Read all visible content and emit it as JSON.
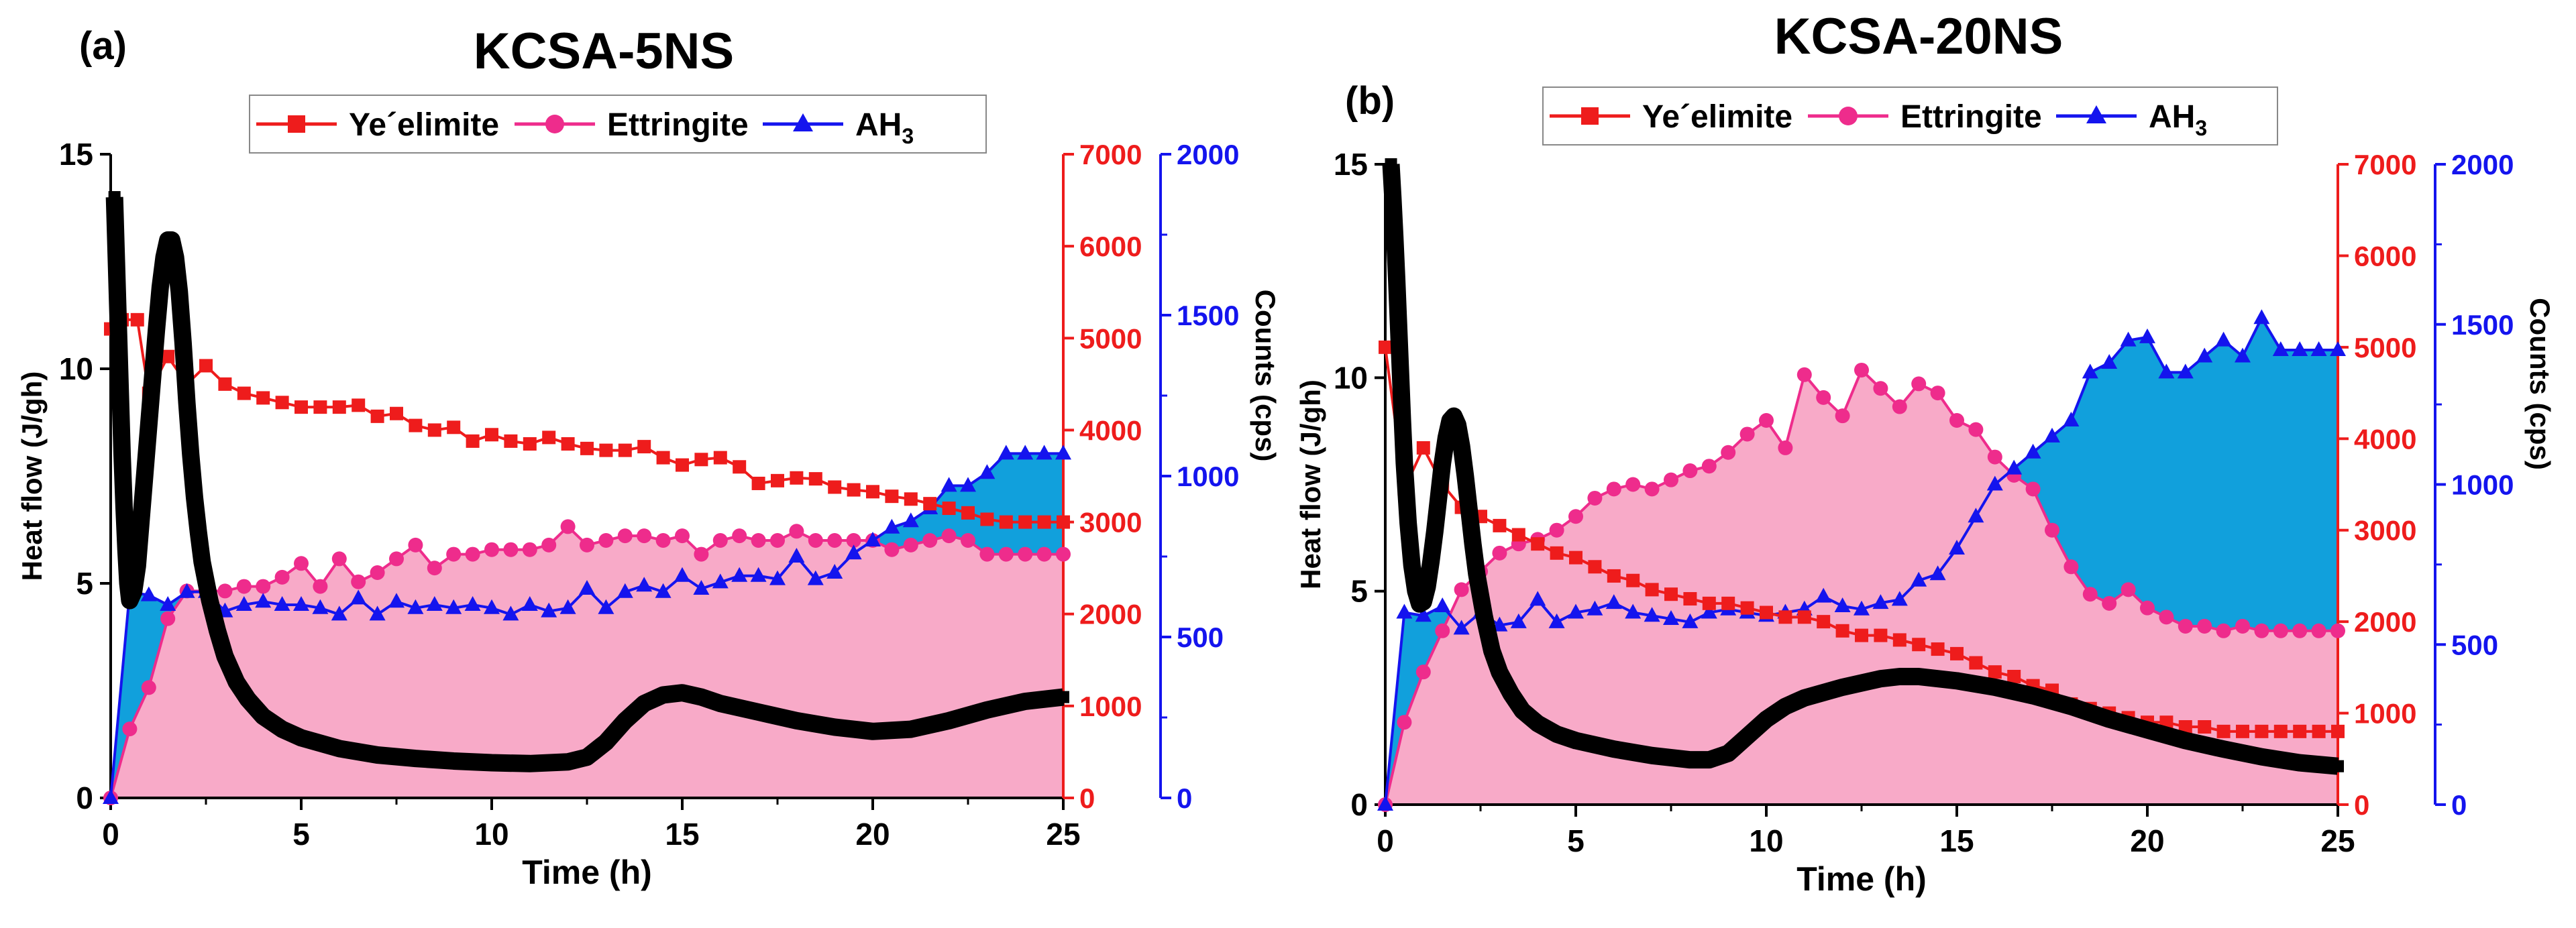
{
  "colors": {
    "yeelimite": "#ee1c1c",
    "ettringite": "#ee2c8c",
    "ettringite_fill": "#f8aac8",
    "ah3": "#1414ee",
    "ah3_fill": "#11a0dc",
    "heat": "#000000",
    "left_axis": "#000000",
    "mid_axis": "#ee1c1c",
    "right_axis": "#1414ee"
  },
  "chart_data": [
    {
      "type": "line",
      "panel_label": "(a)",
      "title": "KCSA-5NS",
      "legend": [
        "Ye´elimite",
        "Ettringite",
        "AH3"
      ],
      "xlabel": "Time (h)",
      "ylabel_left": "Heat flow (J/gh)",
      "ylabel_right": "Counts (cps)",
      "xlim": [
        0,
        25
      ],
      "ylim_left": [
        0,
        15
      ],
      "ylim_mid": [
        0,
        7000
      ],
      "ylim_right": [
        0,
        2000
      ],
      "xticks": [
        0,
        5,
        10,
        15,
        20,
        25
      ],
      "yticks_left": [
        0,
        5,
        10,
        15
      ],
      "yticks_mid": [
        0,
        1000,
        2000,
        3000,
        4000,
        5000,
        6000,
        7000
      ],
      "yticks_right": [
        0,
        500,
        1000,
        1500,
        2000
      ],
      "series": [
        {
          "name": "Heat flow",
          "axis": "left",
          "x": [
            0.1,
            0.15,
            0.2,
            0.25,
            0.3,
            0.35,
            0.4,
            0.45,
            0.5,
            0.6,
            0.7,
            0.8,
            0.9,
            1.0,
            1.1,
            1.2,
            1.3,
            1.4,
            1.5,
            1.6,
            1.7,
            1.8,
            1.9,
            2.0,
            2.1,
            2.2,
            2.3,
            2.4,
            2.6,
            2.8,
            3.0,
            3.3,
            3.6,
            4.0,
            4.5,
            5,
            6,
            7,
            8,
            9,
            10,
            11,
            12,
            12.5,
            13,
            13.5,
            14,
            14.5,
            15,
            15.5,
            16,
            17,
            18,
            19,
            20,
            21,
            22,
            23,
            24,
            25
          ],
          "y": [
            14.0,
            12.5,
            11.0,
            9.5,
            8.0,
            6.8,
            5.8,
            5.0,
            4.6,
            4.8,
            5.4,
            6.5,
            7.6,
            8.7,
            9.8,
            10.9,
            11.9,
            12.6,
            13.0,
            13.0,
            12.6,
            11.8,
            10.6,
            9.2,
            8.0,
            7.0,
            6.2,
            5.5,
            4.6,
            3.9,
            3.3,
            2.7,
            2.3,
            1.9,
            1.6,
            1.4,
            1.15,
            1.0,
            0.92,
            0.86,
            0.82,
            0.8,
            0.84,
            0.95,
            1.3,
            1.8,
            2.2,
            2.4,
            2.45,
            2.35,
            2.2,
            2.0,
            1.8,
            1.65,
            1.55,
            1.6,
            1.8,
            2.05,
            2.25,
            2.35
          ]
        },
        {
          "name": "Ye´elimite",
          "axis": "mid",
          "x": [
            0,
            0.3,
            0.7,
            1.0,
            1.5,
            2.0,
            2.5,
            3.0,
            3.5,
            4.0,
            4.5,
            5.0,
            5.5,
            6.0,
            6.5,
            7.0,
            7.5,
            8.0,
            8.5,
            9.0,
            9.5,
            10.0,
            10.5,
            11.0,
            11.5,
            12.0,
            12.5,
            13.0,
            13.5,
            14.0,
            14.5,
            15.0,
            15.5,
            16.0,
            16.5,
            17.0,
            17.5,
            18.0,
            18.5,
            19.0,
            19.5,
            20.0,
            20.5,
            21.0,
            21.5,
            22.0,
            22.5,
            23.0,
            23.5,
            24.0,
            24.5,
            25.0
          ],
          "y": [
            5100,
            5200,
            5200,
            4400,
            4800,
            4500,
            4700,
            4500,
            4400,
            4350,
            4300,
            4250,
            4250,
            4250,
            4270,
            4150,
            4180,
            4050,
            4000,
            4030,
            3880,
            3950,
            3880,
            3850,
            3920,
            3850,
            3800,
            3780,
            3780,
            3820,
            3700,
            3620,
            3680,
            3700,
            3600,
            3420,
            3450,
            3480,
            3470,
            3380,
            3350,
            3330,
            3280,
            3250,
            3200,
            3150,
            3100,
            3030,
            3000,
            3000,
            3000,
            3000
          ]
        },
        {
          "name": "Ettringite",
          "axis": "mid",
          "x": [
            0,
            0.5,
            1.0,
            1.5,
            2.0,
            2.5,
            3.0,
            3.5,
            4.0,
            4.5,
            5.0,
            5.5,
            6.0,
            6.5,
            7.0,
            7.5,
            8.0,
            8.5,
            9.0,
            9.5,
            10.0,
            10.5,
            11.0,
            11.5,
            12.0,
            12.5,
            13.0,
            13.5,
            14.0,
            14.5,
            15.0,
            15.5,
            16.0,
            16.5,
            17.0,
            17.5,
            18.0,
            18.5,
            19.0,
            19.5,
            20.0,
            20.5,
            21.0,
            21.5,
            22.0,
            22.5,
            23.0,
            23.5,
            24.0,
            24.5,
            25.0
          ],
          "y": [
            0,
            750,
            1200,
            1950,
            2250,
            2250,
            2250,
            2300,
            2300,
            2400,
            2550,
            2300,
            2600,
            2350,
            2450,
            2600,
            2750,
            2500,
            2650,
            2650,
            2700,
            2700,
            2700,
            2750,
            2950,
            2750,
            2800,
            2850,
            2850,
            2800,
            2850,
            2650,
            2800,
            2850,
            2800,
            2800,
            2900,
            2800,
            2800,
            2800,
            2800,
            2700,
            2750,
            2800,
            2850,
            2800,
            2650,
            2650,
            2650,
            2650,
            2650
          ]
        },
        {
          "name": "AH3",
          "axis": "right",
          "x": [
            0,
            0.5,
            1.0,
            1.5,
            2.0,
            2.5,
            3.0,
            3.5,
            4.0,
            4.5,
            5.0,
            5.5,
            6.0,
            6.5,
            7.0,
            7.5,
            8.0,
            8.5,
            9.0,
            9.5,
            10.0,
            10.5,
            11.0,
            11.5,
            12.0,
            12.5,
            13.0,
            13.5,
            14.0,
            14.5,
            15.0,
            15.5,
            16.0,
            16.5,
            17.0,
            17.5,
            18.0,
            18.5,
            19.0,
            19.5,
            20.0,
            20.5,
            21.0,
            21.5,
            22.0,
            22.5,
            23.0,
            23.5,
            24.0,
            24.5,
            25.0
          ],
          "y": [
            0,
            640,
            630,
            600,
            640,
            640,
            580,
            600,
            610,
            600,
            600,
            590,
            570,
            620,
            570,
            610,
            590,
            600,
            590,
            600,
            590,
            570,
            600,
            580,
            590,
            650,
            590,
            640,
            660,
            640,
            690,
            650,
            670,
            690,
            690,
            680,
            750,
            680,
            700,
            760,
            800,
            840,
            860,
            900,
            970,
            970,
            1010,
            1070,
            1070,
            1070,
            1070
          ]
        }
      ]
    },
    {
      "type": "line",
      "panel_label": "(b)",
      "title": "KCSA-20NS",
      "legend": [
        "Ye´elimite",
        "Ettringite",
        "AH3"
      ],
      "xlabel": "Time (h)",
      "ylabel_left": "Heat flow (J/gh)",
      "ylabel_right": "Counts (cps)",
      "xlim": [
        0,
        25
      ],
      "ylim_left": [
        0,
        15
      ],
      "ylim_mid": [
        0,
        7000
      ],
      "ylim_right": [
        0,
        2000
      ],
      "xticks": [
        0,
        5,
        10,
        15,
        20,
        25
      ],
      "yticks_left": [
        0,
        5,
        10,
        15
      ],
      "yticks_mid": [
        0,
        1000,
        2000,
        3000,
        4000,
        5000,
        6000,
        7000
      ],
      "yticks_right": [
        0,
        500,
        1000,
        1500,
        2000
      ],
      "series": [
        {
          "name": "Heat flow",
          "axis": "left",
          "x": [
            0.15,
            0.2,
            0.25,
            0.3,
            0.35,
            0.4,
            0.45,
            0.5,
            0.6,
            0.7,
            0.8,
            0.9,
            1.0,
            1.1,
            1.2,
            1.3,
            1.4,
            1.5,
            1.6,
            1.7,
            1.8,
            1.9,
            2.0,
            2.1,
            2.2,
            2.3,
            2.4,
            2.6,
            2.8,
            3.0,
            3.3,
            3.6,
            4.0,
            4.5,
            5,
            6,
            7,
            8,
            8.5,
            9,
            9.5,
            10,
            10.5,
            11,
            12,
            13,
            13.5,
            14,
            15,
            16,
            17,
            18,
            19,
            20,
            21,
            22,
            23,
            24,
            25
          ],
          "y": [
            15.0,
            14.2,
            13.3,
            12.3,
            11.2,
            10.1,
            9.0,
            8.0,
            6.6,
            5.6,
            5.0,
            4.7,
            4.75,
            5.1,
            5.7,
            6.4,
            7.2,
            8.0,
            8.6,
            9.0,
            9.1,
            8.9,
            8.4,
            7.7,
            6.9,
            6.1,
            5.4,
            4.4,
            3.6,
            3.1,
            2.6,
            2.2,
            1.9,
            1.65,
            1.5,
            1.3,
            1.15,
            1.05,
            1.05,
            1.2,
            1.6,
            2.0,
            2.3,
            2.5,
            2.75,
            2.95,
            3.0,
            3.0,
            2.9,
            2.75,
            2.55,
            2.3,
            2.0,
            1.75,
            1.5,
            1.3,
            1.12,
            0.98,
            0.9
          ]
        },
        {
          "name": "Ye´elimite",
          "axis": "mid",
          "x": [
            0,
            0.5,
            1.0,
            1.5,
            2.0,
            2.5,
            3.0,
            3.5,
            4.0,
            4.5,
            5.0,
            5.5,
            6.0,
            6.5,
            7.0,
            7.5,
            8.0,
            8.5,
            9.0,
            9.5,
            10.0,
            10.5,
            11.0,
            11.5,
            12.0,
            12.5,
            13.0,
            13.5,
            14.0,
            14.5,
            15.0,
            15.5,
            16.0,
            16.5,
            17.0,
            17.5,
            18.0,
            18.5,
            19.0,
            19.5,
            20.0,
            20.5,
            21.0,
            21.5,
            22.0,
            22.5,
            23.0,
            23.5,
            24.0,
            24.5,
            25.0
          ],
          "y": [
            5000,
            3450,
            3900,
            3500,
            3250,
            3150,
            3050,
            2950,
            2850,
            2750,
            2700,
            2600,
            2500,
            2450,
            2350,
            2300,
            2250,
            2200,
            2200,
            2150,
            2100,
            2050,
            2050,
            2000,
            1900,
            1850,
            1850,
            1800,
            1750,
            1700,
            1650,
            1550,
            1450,
            1400,
            1300,
            1250,
            1100,
            1050,
            1000,
            950,
            900,
            900,
            850,
            850,
            800,
            800,
            800,
            800,
            800,
            800,
            800
          ]
        },
        {
          "name": "Ettringite",
          "axis": "mid",
          "x": [
            0,
            0.5,
            1.0,
            1.5,
            2.0,
            2.5,
            3.0,
            3.5,
            4.0,
            4.5,
            5.0,
            5.5,
            6.0,
            6.5,
            7.0,
            7.5,
            8.0,
            8.5,
            9.0,
            9.5,
            10.0,
            10.5,
            11.0,
            11.5,
            12.0,
            12.5,
            13.0,
            13.5,
            14.0,
            14.5,
            15.0,
            15.5,
            16.0,
            16.5,
            17.0,
            17.5,
            18.0,
            18.5,
            19.0,
            19.5,
            20.0,
            20.5,
            21.0,
            21.5,
            22.0,
            22.5,
            23.0,
            23.5,
            24.0,
            24.5,
            25.0
          ],
          "y": [
            0,
            900,
            1450,
            1900,
            2350,
            2550,
            2750,
            2850,
            2900,
            3000,
            3150,
            3350,
            3450,
            3500,
            3450,
            3550,
            3650,
            3700,
            3850,
            4050,
            4200,
            3900,
            4700,
            4450,
            4250,
            4750,
            4550,
            4350,
            4600,
            4500,
            4200,
            4100,
            3800,
            3600,
            3450,
            3000,
            2600,
            2300,
            2200,
            2350,
            2150,
            2050,
            1950,
            1950,
            1900,
            1950,
            1900,
            1900,
            1900,
            1900,
            1900
          ]
        },
        {
          "name": "AH3",
          "axis": "right",
          "x": [
            0,
            0.5,
            1.0,
            1.5,
            2.0,
            2.5,
            3.0,
            3.5,
            4.0,
            4.5,
            5.0,
            5.5,
            6.0,
            6.5,
            7.0,
            7.5,
            8.0,
            8.5,
            9.0,
            9.5,
            10.0,
            10.5,
            11.0,
            11.5,
            12.0,
            12.5,
            13.0,
            13.5,
            14.0,
            14.5,
            15.0,
            15.5,
            16.0,
            16.5,
            17.0,
            17.5,
            18.0,
            18.5,
            19.0,
            19.5,
            20.0,
            20.5,
            21.0,
            21.5,
            22.0,
            22.5,
            23.0,
            23.5,
            24.0,
            24.5,
            25.0
          ],
          "y": [
            0,
            600,
            590,
            620,
            550,
            600,
            560,
            570,
            640,
            570,
            600,
            610,
            630,
            600,
            590,
            580,
            570,
            600,
            610,
            600,
            590,
            600,
            610,
            650,
            620,
            610,
            630,
            640,
            700,
            720,
            800,
            900,
            1000,
            1050,
            1100,
            1150,
            1200,
            1350,
            1380,
            1450,
            1460,
            1350,
            1350,
            1400,
            1450,
            1400,
            1520,
            1420,
            1420,
            1420,
            1420
          ]
        }
      ]
    }
  ]
}
